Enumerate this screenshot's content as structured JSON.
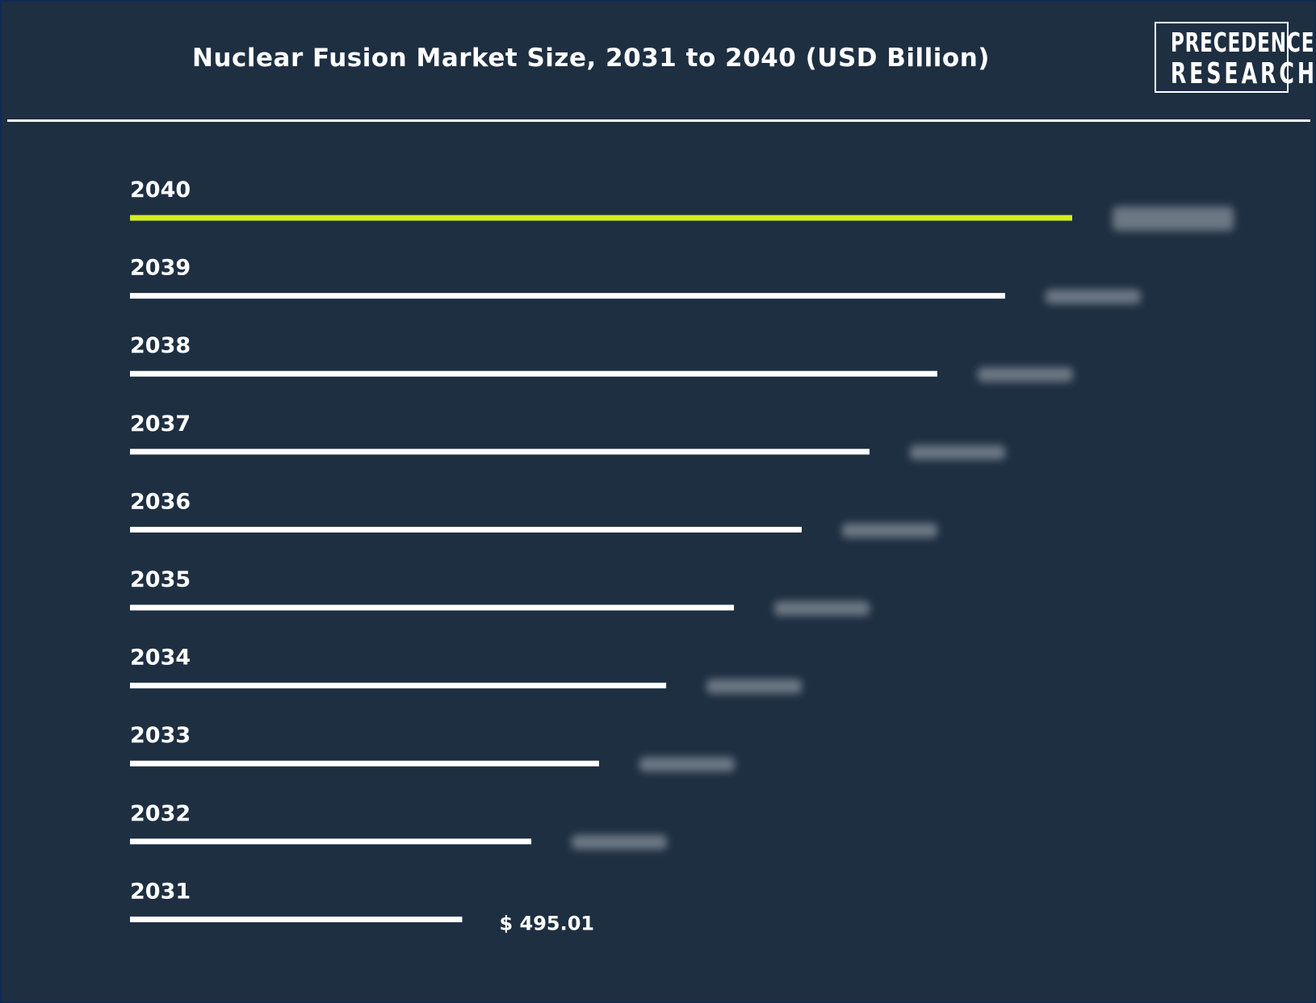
{
  "title": "Nuclear Fusion Market Size, 2031 to 2040 (USD Billion)",
  "logo": {
    "line1": "PRECEDENCE",
    "line2": "RESEARCH"
  },
  "colors": {
    "background": "#1e2f42",
    "bar": "#ffffff",
    "highlight_bar": "#d4ee1f",
    "text": "#ffffff",
    "frame_border": "#0f2a55"
  },
  "chart_data": {
    "type": "bar",
    "orientation": "horizontal",
    "categories": [
      "2040",
      "2039",
      "2038",
      "2037",
      "2036",
      "2035",
      "2034",
      "2033",
      "2032",
      "2031"
    ],
    "values": [
      1404,
      1304,
      1203,
      1102,
      1001,
      900,
      799,
      699,
      598,
      495.01
    ],
    "value_labels": [
      "",
      "",
      "",
      "",
      "",
      "",
      "",
      "",
      "",
      "$ 495.01"
    ],
    "highlight_category": "2040",
    "xlim": [
      0,
      1404
    ],
    "grid": false,
    "legend": "none"
  }
}
